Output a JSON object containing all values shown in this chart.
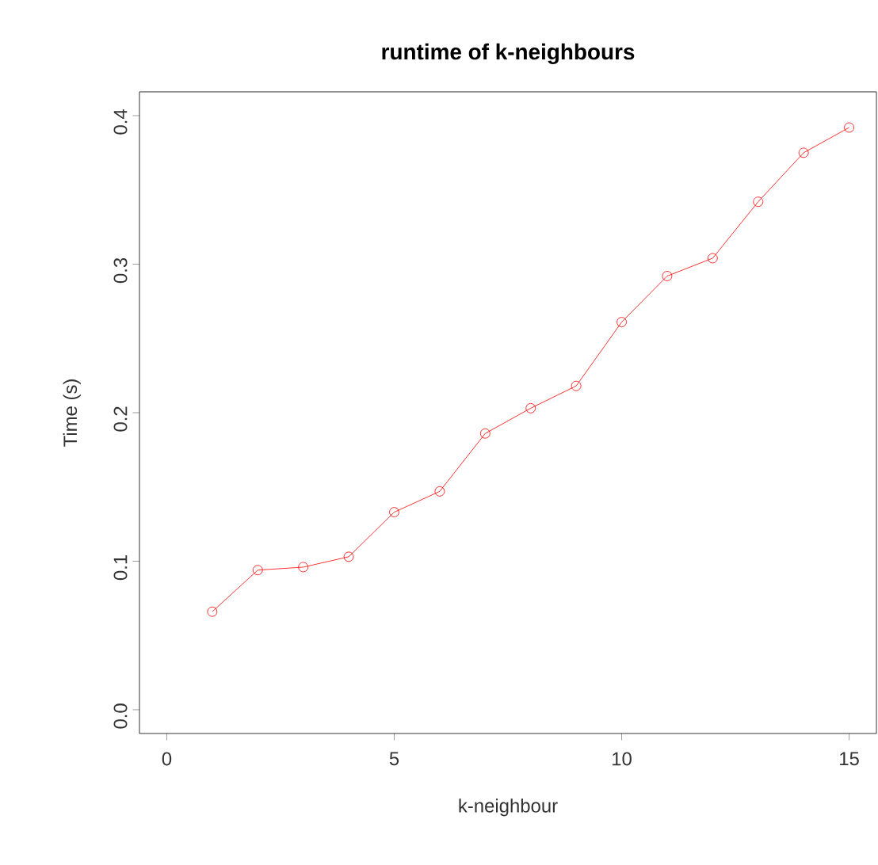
{
  "chart_data": {
    "type": "line",
    "title": "runtime of k-neighbours",
    "xlabel": "k-neighbour",
    "ylabel": "Time (s)",
    "x": [
      1,
      2,
      3,
      4,
      5,
      6,
      7,
      8,
      9,
      10,
      11,
      12,
      13,
      14,
      15
    ],
    "values": [
      0.066,
      0.094,
      0.096,
      0.103,
      0.133,
      0.147,
      0.186,
      0.203,
      0.218,
      0.261,
      0.292,
      0.304,
      0.342,
      0.375,
      0.392
    ],
    "color": "#ff0000",
    "marker": "circle",
    "line_style": "solid",
    "xlim": [
      -0.6,
      15.6
    ],
    "ylim": [
      -0.016,
      0.416
    ],
    "xticks": [
      0,
      5,
      10,
      15
    ],
    "yticks": [
      {
        "value": 0,
        "label": "0.0"
      },
      {
        "value": 0.1,
        "label": "0.1"
      },
      {
        "value": 0.2,
        "label": "0.2"
      },
      {
        "value": 0.3,
        "label": "0.3"
      },
      {
        "value": 0.4,
        "label": "0.4"
      }
    ]
  }
}
